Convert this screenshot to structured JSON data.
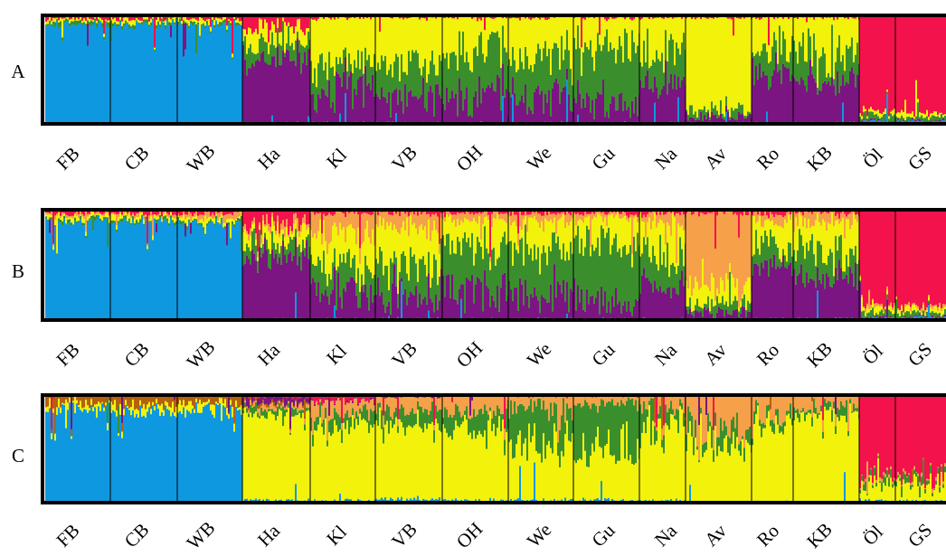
{
  "chart_data": {
    "type": "stacked-bar-structure-plot",
    "population_labels": [
      "FB",
      "CB",
      "WB",
      "Ha",
      "Kl",
      "VB",
      "OH",
      "We",
      "Gu",
      "Na",
      "Av",
      "Ro",
      "KB",
      "Öl",
      "GS"
    ],
    "y_range": [
      0,
      1
    ],
    "colors": {
      "blue": "#0e98e0",
      "purple": "#7a1582",
      "green": "#3a8f2c",
      "yellow": "#f2f20a",
      "red": "#f4124c",
      "orange": "#f6a04a",
      "brown": "#b5600f"
    },
    "panels": [
      {
        "label": "A",
        "clusters": [
          "blue",
          "purple",
          "green",
          "yellow",
          "red"
        ],
        "mean_membership": [
          {
            "pop": "FB",
            "values": [
              0.92,
              0.0,
              0.03,
              0.02,
              0.03
            ]
          },
          {
            "pop": "CB",
            "values": [
              0.92,
              0.0,
              0.02,
              0.03,
              0.03
            ]
          },
          {
            "pop": "WB",
            "values": [
              0.92,
              0.0,
              0.02,
              0.03,
              0.03
            ]
          },
          {
            "pop": "Ha",
            "values": [
              0.01,
              0.62,
              0.14,
              0.13,
              0.1
            ]
          },
          {
            "pop": "Kl",
            "values": [
              0.01,
              0.3,
              0.23,
              0.44,
              0.02
            ]
          },
          {
            "pop": "VB",
            "values": [
              0.01,
              0.22,
              0.3,
              0.45,
              0.02
            ]
          },
          {
            "pop": "OH",
            "values": [
              0.01,
              0.25,
              0.44,
              0.28,
              0.02
            ]
          },
          {
            "pop": "We",
            "values": [
              0.01,
              0.25,
              0.38,
              0.34,
              0.02
            ]
          },
          {
            "pop": "Gu",
            "values": [
              0.01,
              0.18,
              0.53,
              0.26,
              0.02
            ]
          },
          {
            "pop": "Na",
            "values": [
              0.01,
              0.35,
              0.3,
              0.32,
              0.02
            ]
          },
          {
            "pop": "Av",
            "values": [
              0.01,
              0.06,
              0.06,
              0.85,
              0.02
            ]
          },
          {
            "pop": "Ro",
            "values": [
              0.01,
              0.5,
              0.21,
              0.26,
              0.02
            ]
          },
          {
            "pop": "KB",
            "values": [
              0.01,
              0.4,
              0.24,
              0.33,
              0.02
            ]
          },
          {
            "pop": "Öl",
            "values": [
              0.02,
              0.01,
              0.04,
              0.03,
              0.9
            ]
          },
          {
            "pop": "GS",
            "values": [
              0.02,
              0.01,
              0.03,
              0.03,
              0.91
            ]
          }
        ]
      },
      {
        "label": "B",
        "clusters": [
          "blue",
          "purple",
          "green",
          "yellow",
          "orange",
          "red"
        ],
        "mean_membership": [
          {
            "pop": "FB",
            "values": [
              0.9,
              0.0,
              0.02,
              0.03,
              0.02,
              0.03
            ]
          },
          {
            "pop": "CB",
            "values": [
              0.9,
              0.0,
              0.02,
              0.03,
              0.02,
              0.03
            ]
          },
          {
            "pop": "WB",
            "values": [
              0.88,
              0.0,
              0.02,
              0.03,
              0.04,
              0.03
            ]
          },
          {
            "pop": "Ha",
            "values": [
              0.01,
              0.58,
              0.12,
              0.12,
              0.05,
              0.12
            ]
          },
          {
            "pop": "Kl",
            "values": [
              0.01,
              0.24,
              0.22,
              0.3,
              0.2,
              0.03
            ]
          },
          {
            "pop": "VB",
            "values": [
              0.01,
              0.2,
              0.3,
              0.34,
              0.12,
              0.03
            ]
          },
          {
            "pop": "OH",
            "values": [
              0.01,
              0.25,
              0.4,
              0.25,
              0.06,
              0.03
            ]
          },
          {
            "pop": "We",
            "values": [
              0.01,
              0.22,
              0.4,
              0.26,
              0.08,
              0.03
            ]
          },
          {
            "pop": "Gu",
            "values": [
              0.01,
              0.16,
              0.54,
              0.22,
              0.04,
              0.03
            ]
          },
          {
            "pop": "Na",
            "values": [
              0.01,
              0.32,
              0.28,
              0.28,
              0.08,
              0.03
            ]
          },
          {
            "pop": "Av",
            "values": [
              0.01,
              0.06,
              0.08,
              0.16,
              0.66,
              0.03
            ]
          },
          {
            "pop": "Ro",
            "values": [
              0.01,
              0.48,
              0.18,
              0.24,
              0.06,
              0.03
            ]
          },
          {
            "pop": "KB",
            "values": [
              0.01,
              0.38,
              0.22,
              0.28,
              0.08,
              0.03
            ]
          },
          {
            "pop": "Öl",
            "values": [
              0.02,
              0.01,
              0.04,
              0.04,
              0.02,
              0.87
            ]
          },
          {
            "pop": "GS",
            "values": [
              0.02,
              0.01,
              0.03,
              0.03,
              0.02,
              0.89
            ]
          }
        ]
      },
      {
        "label": "C",
        "clusters": [
          "blue",
          "yellow",
          "green",
          "orange",
          "brown",
          "purple",
          "red"
        ],
        "mean_membership": [
          {
            "pop": "FB",
            "values": [
              0.88,
              0.05,
              0.0,
              0.0,
              0.06,
              0.0,
              0.01
            ]
          },
          {
            "pop": "CB",
            "values": [
              0.86,
              0.06,
              0.0,
              0.0,
              0.07,
              0.0,
              0.01
            ]
          },
          {
            "pop": "WB",
            "values": [
              0.86,
              0.07,
              0.0,
              0.0,
              0.06,
              0.0,
              0.01
            ]
          },
          {
            "pop": "Ha",
            "values": [
              0.02,
              0.8,
              0.05,
              0.04,
              0.02,
              0.05,
              0.02
            ]
          },
          {
            "pop": "Kl",
            "values": [
              0.02,
              0.72,
              0.1,
              0.1,
              0.0,
              0.01,
              0.05
            ]
          },
          {
            "pop": "VB",
            "values": [
              0.03,
              0.72,
              0.12,
              0.11,
              0.0,
              0.01,
              0.01
            ]
          },
          {
            "pop": "OH",
            "values": [
              0.02,
              0.7,
              0.15,
              0.12,
              0.0,
              0.0,
              0.01
            ]
          },
          {
            "pop": "We",
            "values": [
              0.02,
              0.5,
              0.36,
              0.11,
              0.0,
              0.0,
              0.01
            ]
          },
          {
            "pop": "Gu",
            "values": [
              0.02,
              0.46,
              0.44,
              0.07,
              0.0,
              0.0,
              0.01
            ]
          },
          {
            "pop": "Na",
            "values": [
              0.02,
              0.74,
              0.14,
              0.09,
              0.0,
              0.0,
              0.01
            ]
          },
          {
            "pop": "Av",
            "values": [
              0.01,
              0.56,
              0.12,
              0.3,
              0.0,
              0.0,
              0.01
            ]
          },
          {
            "pop": "Ro",
            "values": [
              0.01,
              0.74,
              0.08,
              0.16,
              0.0,
              0.0,
              0.01
            ]
          },
          {
            "pop": "KB",
            "values": [
              0.01,
              0.82,
              0.07,
              0.09,
              0.0,
              0.0,
              0.01
            ]
          },
          {
            "pop": "Öl",
            "values": [
              0.02,
              0.14,
              0.05,
              0.02,
              0.0,
              0.0,
              0.77
            ]
          },
          {
            "pop": "GS",
            "values": [
              0.02,
              0.16,
              0.05,
              0.02,
              0.0,
              0.0,
              0.75
            ]
          }
        ]
      }
    ]
  }
}
